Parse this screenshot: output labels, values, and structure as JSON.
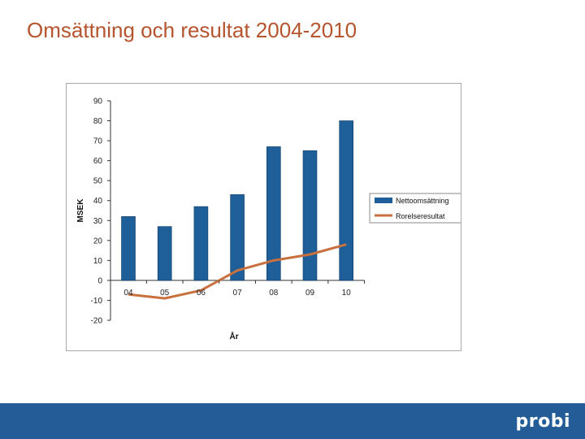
{
  "slide": {
    "title": "Omsättning och resultat 2004-2010",
    "logo_text": "probi"
  },
  "colors": {
    "title": "#b5542e",
    "bar": "#1f5f99",
    "line": "#c8703e",
    "footer": "#235c96"
  },
  "chart_data": {
    "type": "bar",
    "categories": [
      "04",
      "05",
      "06",
      "07",
      "08",
      "09",
      "10"
    ],
    "series": [
      {
        "name": "Nettoomsättning",
        "type": "bar",
        "values": [
          32,
          27,
          37,
          43,
          67,
          65,
          80
        ]
      },
      {
        "name": "Rorelseresultat",
        "type": "line",
        "values": [
          -7,
          -9,
          -5,
          5,
          10,
          13,
          18
        ]
      }
    ],
    "xlabel": "År",
    "ylabel": "MSEK",
    "ylim": [
      -20,
      90
    ],
    "yticks": [
      90,
      80,
      70,
      60,
      50,
      40,
      30,
      20,
      10,
      0,
      -10,
      -20
    ],
    "legend_position": "right",
    "grid": false
  }
}
